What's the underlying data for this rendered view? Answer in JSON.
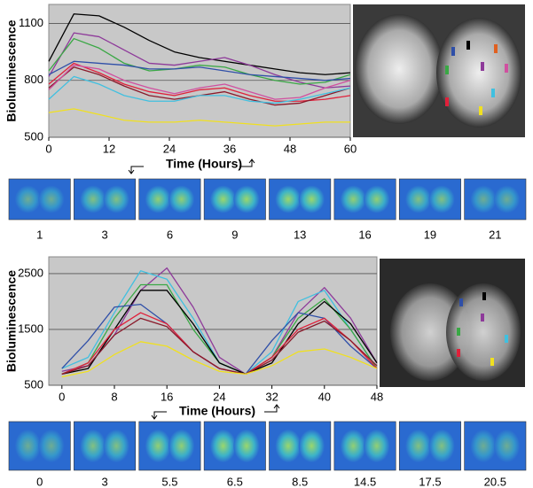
{
  "chart_data": [
    {
      "type": "line",
      "y_label": "Bioluminescence",
      "x_label": "Time (Hours)",
      "x": [
        0,
        5,
        10,
        15,
        20,
        25,
        30,
        35,
        40,
        45,
        50,
        55,
        60
      ],
      "xlim": [
        0,
        60
      ],
      "xticks": [
        0,
        12,
        24,
        36,
        48,
        60
      ],
      "ylim": [
        500,
        1200
      ],
      "yticks": [
        500,
        800,
        1100
      ],
      "grid": true,
      "series": [
        {
          "color": "#000000",
          "values": [
            900,
            1150,
            1140,
            1080,
            1010,
            950,
            920,
            900,
            880,
            860,
            840,
            830,
            840
          ]
        },
        {
          "color": "#8e3a9a",
          "values": [
            820,
            1050,
            1030,
            960,
            890,
            880,
            900,
            920,
            880,
            830,
            790,
            760,
            770
          ]
        },
        {
          "color": "#3aa845",
          "values": [
            850,
            1020,
            970,
            890,
            850,
            860,
            880,
            870,
            830,
            800,
            780,
            790,
            830
          ]
        },
        {
          "color": "#2f4fa8",
          "values": [
            830,
            900,
            890,
            880,
            860,
            860,
            870,
            850,
            830,
            820,
            810,
            800,
            810
          ]
        },
        {
          "color": "#e0203a",
          "values": [
            780,
            890,
            840,
            780,
            740,
            720,
            750,
            760,
            720,
            690,
            690,
            700,
            720
          ]
        },
        {
          "color": "#8a1a2a",
          "values": [
            760,
            870,
            830,
            770,
            720,
            700,
            720,
            740,
            700,
            670,
            680,
            720,
            760
          ]
        },
        {
          "color": "#d050a0",
          "values": [
            750,
            880,
            860,
            800,
            760,
            730,
            760,
            780,
            740,
            700,
            710,
            760,
            800
          ]
        },
        {
          "color": "#40c0e0",
          "values": [
            700,
            820,
            780,
            720,
            690,
            690,
            720,
            720,
            690,
            680,
            700,
            730,
            760
          ]
        },
        {
          "color": "#f0e020",
          "values": [
            630,
            650,
            620,
            590,
            580,
            580,
            590,
            580,
            570,
            560,
            570,
            580,
            580
          ]
        }
      ]
    },
    {
      "type": "line",
      "y_label": "Bioluminescence",
      "x_label": "Time (Hours)",
      "x": [
        0,
        4,
        8,
        12,
        16,
        20,
        24,
        28,
        32,
        36,
        40,
        44,
        48
      ],
      "xlim": [
        -2,
        48
      ],
      "xticks": [
        0,
        8,
        16,
        24,
        32,
        40,
        48
      ],
      "ylim": [
        500,
        2800
      ],
      "yticks": [
        500,
        1500,
        2500
      ],
      "grid": true,
      "series": [
        {
          "color": "#8e3a9a",
          "values": [
            750,
            850,
            1400,
            2200,
            2600,
            1900,
            1000,
            700,
            1000,
            1800,
            2250,
            1700,
            900
          ]
        },
        {
          "color": "#40c0e0",
          "values": [
            800,
            1000,
            1800,
            2550,
            2400,
            1700,
            900,
            700,
            1100,
            2000,
            2200,
            1500,
            800
          ]
        },
        {
          "color": "#3aa845",
          "values": [
            700,
            900,
            1700,
            2300,
            2300,
            1500,
            900,
            700,
            1000,
            1700,
            2050,
            1500,
            800
          ]
        },
        {
          "color": "#000000",
          "values": [
            700,
            800,
            1500,
            2200,
            2200,
            1600,
            900,
            700,
            900,
            1600,
            2000,
            1600,
            900
          ]
        },
        {
          "color": "#2f4fa8",
          "values": [
            800,
            1300,
            1900,
            1950,
            1600,
            1100,
            800,
            700,
            1300,
            1800,
            1700,
            1200,
            800
          ]
        },
        {
          "color": "#e0203a",
          "values": [
            700,
            900,
            1500,
            1800,
            1600,
            1100,
            800,
            700,
            1000,
            1500,
            1700,
            1300,
            800
          ]
        },
        {
          "color": "#8a1a2a",
          "values": [
            700,
            850,
            1400,
            1700,
            1550,
            1100,
            800,
            700,
            950,
            1450,
            1650,
            1300,
            850
          ]
        },
        {
          "color": "#f0e020",
          "values": [
            650,
            750,
            1050,
            1280,
            1200,
            950,
            750,
            700,
            850,
            1100,
            1150,
            1000,
            800
          ]
        }
      ]
    }
  ],
  "thumbnail_strips": [
    {
      "labels": [
        "1",
        "3",
        "6",
        "9",
        "13",
        "16",
        "19",
        "21"
      ]
    },
    {
      "labels": [
        "0",
        "3",
        "5.5",
        "6.5",
        "8.5",
        "14.5",
        "17.5",
        "20.5"
      ]
    }
  ]
}
